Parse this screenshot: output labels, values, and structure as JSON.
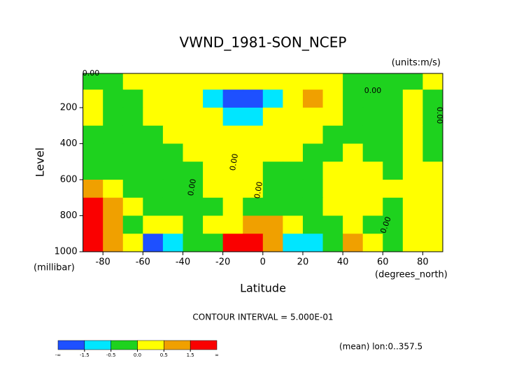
{
  "chart_data": {
    "type": "contour",
    "title": "VWND_1981-SON_NCEP",
    "subtitle": "(units:m/s)",
    "y_label": "Level",
    "y_units": "(millibar)",
    "x_label": "Latitude",
    "x_units": "(degrees_north)",
    "footer": "CONTOUR INTERVAL = 5.000E-01",
    "note": "(mean) lon:0..357.5",
    "xlim": [
      -90,
      90
    ],
    "xticks": [
      -80,
      -60,
      -40,
      -20,
      0,
      20,
      40,
      60,
      80
    ],
    "ylim": [
      1000,
      10
    ],
    "yticks": [
      200,
      400,
      600,
      800,
      1000
    ],
    "x": [
      -85,
      -75,
      -65,
      -55,
      -45,
      -35,
      -25,
      -15,
      -5,
      5,
      15,
      25,
      35,
      45,
      55,
      65,
      75,
      85
    ],
    "y": [
      50,
      150,
      250,
      350,
      450,
      550,
      650,
      750,
      850,
      950
    ],
    "z": [
      [
        -0.3,
        -0.3,
        0.3,
        0.3,
        0.3,
        0.3,
        0.3,
        0.3,
        0.3,
        0.3,
        0.3,
        0.3,
        0.3,
        -0.3,
        -0.3,
        -0.3,
        -0.3,
        0.3
      ],
      [
        0.3,
        -0.3,
        -0.3,
        0.3,
        0.3,
        0.3,
        -1,
        -2,
        -2,
        -1,
        0.3,
        1,
        0.3,
        -0.3,
        -0.3,
        -0.3,
        0.3,
        -0.3
      ],
      [
        0.3,
        -0.3,
        -0.3,
        0.3,
        0.3,
        0.3,
        0.3,
        -1,
        -1,
        0.3,
        0.3,
        0.3,
        0.3,
        -0.3,
        -0.3,
        -0.3,
        0.3,
        -0.3
      ],
      [
        -0.3,
        -0.3,
        -0.3,
        -0.3,
        0.3,
        0.3,
        0.3,
        0.3,
        0.3,
        0.3,
        0.3,
        0.3,
        -0.3,
        -0.3,
        -0.3,
        -0.3,
        0.3,
        -0.3
      ],
      [
        -0.3,
        -0.3,
        -0.3,
        -0.3,
        -0.3,
        0.3,
        0.3,
        0.3,
        0.3,
        0.3,
        0.3,
        -0.3,
        -0.3,
        0.3,
        -0.3,
        -0.3,
        0.3,
        -0.3
      ],
      [
        -0.3,
        -0.3,
        -0.3,
        -0.3,
        -0.3,
        -0.3,
        0.3,
        0.3,
        0.3,
        -0.3,
        -0.3,
        -0.3,
        0.3,
        0.3,
        0.3,
        -0.3,
        0.3,
        0.3
      ],
      [
        1,
        0.3,
        -0.3,
        -0.3,
        -0.3,
        -0.3,
        0.3,
        0.3,
        0.3,
        -0.3,
        -0.3,
        -0.3,
        0.3,
        0.3,
        0.3,
        0.3,
        0.3,
        0.3
      ],
      [
        2,
        1,
        0.3,
        -0.3,
        -0.3,
        -0.3,
        -0.3,
        0.3,
        -0.3,
        -0.3,
        -0.3,
        -0.3,
        0.3,
        0.3,
        0.3,
        -0.3,
        0.3,
        0.3
      ],
      [
        2,
        1,
        -0.3,
        0.3,
        0.3,
        -0.3,
        0.3,
        0.3,
        1,
        1,
        0.3,
        -0.3,
        -0.3,
        0.3,
        -0.3,
        -0.3,
        0.3,
        0.3
      ],
      [
        2,
        1,
        0.3,
        -2,
        -1,
        -0.3,
        -0.3,
        2,
        2,
        1,
        -1,
        -1,
        -0.3,
        1,
        0.3,
        -0.3,
        0.3,
        0.3
      ]
    ],
    "levels": [
      -1.5,
      -0.5,
      {
        "value": 0,
        "label": "0.0"
      },
      0.5,
      1.5
    ],
    "colorbar_ends": [
      "-∞",
      "∞"
    ],
    "colors": [
      "#1e50ff",
      "#00e6ff",
      "#1ed21e",
      "#ffff00",
      "#f0a000",
      "#fa0000"
    ],
    "contour_labels": [
      "0.00",
      "0.00",
      "0.00",
      "0.00",
      "0.00",
      "0.00",
      "0.00"
    ]
  }
}
